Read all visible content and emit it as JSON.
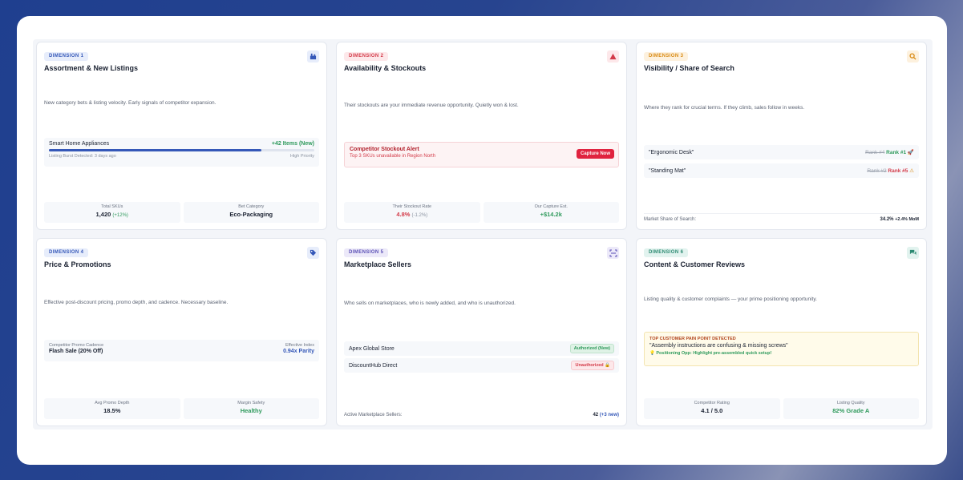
{
  "colors": {
    "accent": "#3558b8",
    "positive": "#2f9a5c",
    "negative": "#d33a48",
    "warning": "#d98a12"
  },
  "cards": [
    {
      "badge": "DIMENSION 1",
      "title": "Assortment & New Listings",
      "icon": "store-icon",
      "desc": "New category bets & listing velocity. Early signals of competitor expansion.",
      "bar": {
        "label": "Smart Home Appliances",
        "value": "+42 Items (New)",
        "sub_left": "Listing Burst Detected: 3 days ago",
        "sub_right": "High Priority",
        "progress": 0.8
      },
      "stats": [
        {
          "label": "Total SKUs",
          "value": "1,420",
          "delta": "(+12%)"
        },
        {
          "label": "Bet Category",
          "value": "Eco-Packaging"
        }
      ]
    },
    {
      "badge": "DIMENSION 2",
      "title": "Availability & Stockouts",
      "icon": "alert-icon",
      "desc": "Their stockouts are your immediate revenue opportunity. Quietly won & lost.",
      "alert": {
        "title": "Competitor Stockout Alert",
        "sub": "Top 3 SKUs unavailable in Region North",
        "button": "Capture Now"
      },
      "stats": [
        {
          "label": "Their Stockout Rate",
          "value": "4.8%",
          "delta": "(-1.2%)"
        },
        {
          "label": "Our Capture Est.",
          "value": "+$14.2k"
        }
      ]
    },
    {
      "badge": "DIMENSION 3",
      "title": "Visibility / Share of Search",
      "icon": "search-icon",
      "desc": "Where they rank for crucial terms. If they climb, sales follow in weeks.",
      "ranks": [
        {
          "term": "\"Ergonomic Desk\"",
          "old": "Rank #4",
          "new": "Rank #1",
          "mark": "🚀"
        },
        {
          "term": "\"Standing Mat\"",
          "old": "Rank #2",
          "new": "Rank #5",
          "mark": "⚠"
        }
      ],
      "footer": {
        "label": "Market Share of Search:",
        "value": "34.2%",
        "delta": "+2.4% MoM"
      }
    },
    {
      "badge": "DIMENSION 4",
      "title": "Price & Promotions",
      "icon": "tag-icon",
      "desc": "Effective post-discount pricing, promo depth, and cadence. Necessary baseline.",
      "promo": {
        "left_label": "Competitor Promo Cadence",
        "left_value": "Flash Sale (20% Off)",
        "right_label": "Effective Index",
        "right_value": "0.94x Parity"
      },
      "stats": [
        {
          "label": "Avg Promo Depth",
          "value": "18.5%"
        },
        {
          "label": "Margin Safety",
          "value": "Healthy"
        }
      ]
    },
    {
      "badge": "DIMENSION 5",
      "title": "Marketplace Sellers",
      "icon": "scan-icon",
      "desc": "Who sells on marketplaces, who is newly added, and who is unauthorized.",
      "sellers": [
        {
          "name": "Apex Global Store",
          "status": "Authorized (New)"
        },
        {
          "name": "DiscountHub Direct",
          "status": "Unauthorized 🔒"
        }
      ],
      "footer": {
        "label": "Active Marketplace Sellers:",
        "value": "42",
        "delta": "(+3 new)"
      }
    },
    {
      "badge": "DIMENSION 6",
      "title": "Content & Customer Reviews",
      "icon": "chat-icon",
      "desc": "Listing quality & customer complaints — your prime positioning opportunity.",
      "pain": {
        "heading": "TOP CUSTOMER PAIN POINT DETECTED",
        "quote": "\"Assembly instructions are confusing & missing screws\"",
        "opp": "💡 Positioning Opp: Highlight pre-assembled quick setup!"
      },
      "stats": [
        {
          "label": "Competitor Rating",
          "value": "4.1 / 5.0"
        },
        {
          "label": "Listing Quality",
          "value": "82% Grade A"
        }
      ]
    }
  ]
}
